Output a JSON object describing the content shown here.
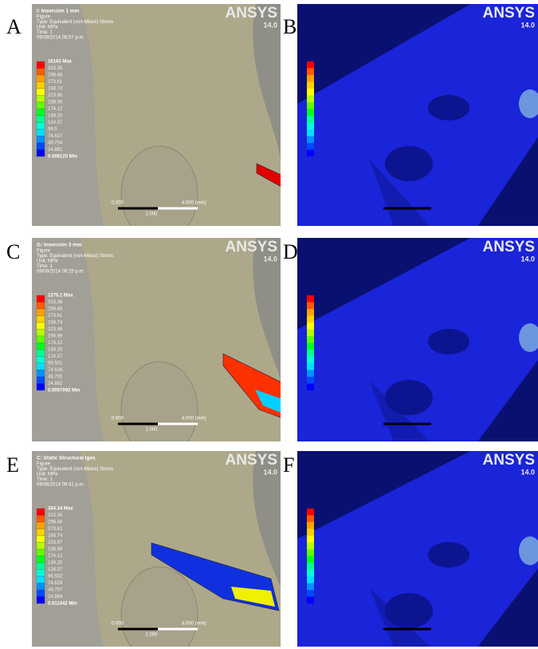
{
  "panels": [
    {
      "letter": "A",
      "title": "I: Inserción 1 mm",
      "lines": [
        "Figure",
        "Type: Equivalent (von-Mises) Stress",
        "Unit: MPa",
        "Time: 1",
        "09/08/2014 08:57 p.m."
      ],
      "legend": [
        "16163 Max",
        "323.36",
        "298.48",
        "273.61",
        "248.74",
        "223.86",
        "198.99",
        "174.12",
        "149.25",
        "124.37",
        "99.5",
        "74.627",
        "49.754",
        "24.881",
        "0.008125 Min"
      ],
      "scale": [
        "0.000",
        "4.000 (mm)",
        "2.000"
      ],
      "logo": "ANSYS",
      "version": "14.0"
    },
    {
      "letter": "B",
      "logo": "ANSYS",
      "version": "14.0"
    },
    {
      "letter": "C",
      "title": "G: Inserción 3 mm",
      "lines": [
        "Figure",
        "Type: Equivalent (von-Mises) Stress",
        "Unit: MPa",
        "Time: 1",
        "09/08/2014 09:25 p.m."
      ],
      "legend": [
        "1275.1 Max",
        "323.36",
        "298.48",
        "273.61",
        "248.74",
        "223.86",
        "198.99",
        "174.12",
        "149.26",
        "124.37",
        "99.501",
        "74.626",
        "49.755",
        "24.882",
        "0.0097092 Min"
      ],
      "scale": [
        "0.000",
        "4.000 (mm)",
        "2.000"
      ],
      "logo": "ANSYS",
      "version": "14.0"
    },
    {
      "letter": "D",
      "logo": "ANSYS",
      "version": "14.0"
    },
    {
      "letter": "E",
      "title": "C: Static Structural Iges",
      "lines": [
        "Figure",
        "Type: Equivalent (von-Mises) Stress",
        "Unit: MPa",
        "Time: 1",
        "09/08/2014 09:41 p.m."
      ],
      "legend": [
        "364.34 Max",
        "323.36",
        "298.48",
        "273.61",
        "248.74",
        "223.87",
        "198.99",
        "174.12",
        "149.25",
        "124.37",
        "99.502",
        "74.629",
        "49.757",
        "24.884",
        "0.011442 Min"
      ],
      "scale": [
        "0.000",
        "4.000 (mm)",
        "2.000"
      ],
      "logo": "ANSYS",
      "version": "14.0"
    },
    {
      "letter": "F",
      "logo": "ANSYS",
      "version": "14.0"
    }
  ]
}
